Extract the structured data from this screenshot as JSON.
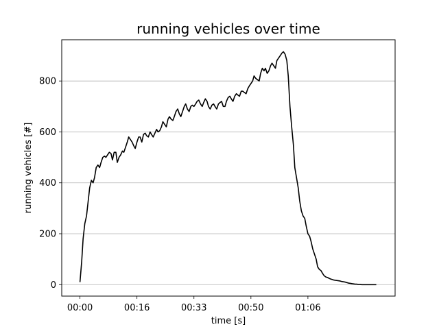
{
  "chart_data": {
    "type": "line",
    "title": "running vehicles over time",
    "xlabel": "time [s]",
    "ylabel": "running vehicles [#]",
    "xlim": [
      -64,
      1106
    ],
    "ylim": [
      -45,
      962
    ],
    "grid": {
      "y": true,
      "x": false
    },
    "x_ticks": [
      {
        "value": 0,
        "label": "00:00"
      },
      {
        "value": 200,
        "label": "00:16"
      },
      {
        "value": 400,
        "label": "00:33"
      },
      {
        "value": 600,
        "label": "00:50"
      },
      {
        "value": 800,
        "label": "01:06"
      }
    ],
    "y_ticks": [
      0,
      200,
      400,
      600,
      800
    ],
    "series": [
      {
        "color": "#000000",
        "x": [
          0,
          6,
          11,
          17,
          23,
          28,
          34,
          40,
          46,
          51,
          57,
          63,
          69,
          74,
          80,
          86,
          91,
          97,
          103,
          109,
          114,
          120,
          126,
          131,
          137,
          143,
          149,
          154,
          160,
          166,
          171,
          177,
          183,
          189,
          194,
          200,
          206,
          211,
          217,
          223,
          229,
          234,
          240,
          246,
          251,
          257,
          263,
          269,
          274,
          280,
          286,
          291,
          297,
          303,
          309,
          314,
          320,
          326,
          331,
          337,
          343,
          349,
          354,
          360,
          366,
          371,
          377,
          383,
          389,
          394,
          400,
          406,
          411,
          417,
          423,
          429,
          434,
          440,
          446,
          451,
          457,
          463,
          469,
          474,
          480,
          486,
          491,
          497,
          503,
          509,
          514,
          520,
          526,
          531,
          537,
          543,
          549,
          554,
          560,
          566,
          571,
          577,
          583,
          589,
          594,
          600,
          606,
          611,
          617,
          623,
          629,
          634,
          640,
          646,
          651,
          657,
          663,
          669,
          674,
          680,
          686,
          691,
          697,
          703,
          709,
          714,
          720,
          726,
          731,
          737,
          743,
          749,
          754,
          760,
          766,
          771,
          777,
          783,
          789,
          794,
          800,
          806,
          811,
          817,
          823,
          829,
          834,
          840,
          846,
          851,
          857,
          863,
          869,
          874,
          880,
          886,
          891,
          897,
          903,
          909,
          914,
          920,
          926,
          931,
          937,
          943,
          949,
          954,
          960,
          966,
          971,
          977,
          983,
          989,
          994,
          1000,
          1006,
          1011,
          1017,
          1023,
          1029,
          1034,
          1040
        ],
        "y": [
          10,
          90,
          180,
          240,
          270,
          320,
          380,
          410,
          400,
          420,
          460,
          470,
          460,
          480,
          500,
          505,
          500,
          510,
          520,
          515,
          490,
          520,
          520,
          480,
          500,
          510,
          525,
          520,
          540,
          560,
          580,
          570,
          560,
          545,
          535,
          560,
          580,
          580,
          560,
          590,
          595,
          585,
          580,
          600,
          590,
          580,
          595,
          610,
          600,
          605,
          620,
          640,
          630,
          620,
          650,
          660,
          650,
          645,
          660,
          680,
          690,
          670,
          660,
          680,
          700,
          710,
          690,
          680,
          700,
          705,
          700,
          710,
          720,
          725,
          710,
          700,
          715,
          730,
          720,
          700,
          690,
          705,
          710,
          700,
          690,
          710,
          715,
          720,
          700,
          700,
          720,
          735,
          740,
          730,
          720,
          740,
          750,
          745,
          740,
          760,
          760,
          755,
          750,
          770,
          780,
          790,
          800,
          820,
          810,
          805,
          800,
          830,
          850,
          840,
          850,
          830,
          840,
          860,
          870,
          860,
          850,
          880,
          890,
          900,
          910,
          915,
          905,
          880,
          820,
          700,
          620,
          550,
          460,
          420,
          380,
          330,
          290,
          270,
          260,
          230,
          200,
          190,
          170,
          140,
          120,
          100,
          70,
          60,
          55,
          45,
          35,
          30,
          28,
          25,
          22,
          20,
          18,
          17,
          16,
          15,
          14,
          12,
          11,
          10,
          8,
          6,
          5,
          4,
          3,
          2,
          2,
          1,
          1,
          0,
          0,
          0,
          0,
          0,
          0,
          0,
          0,
          0,
          0
        ]
      }
    ]
  }
}
